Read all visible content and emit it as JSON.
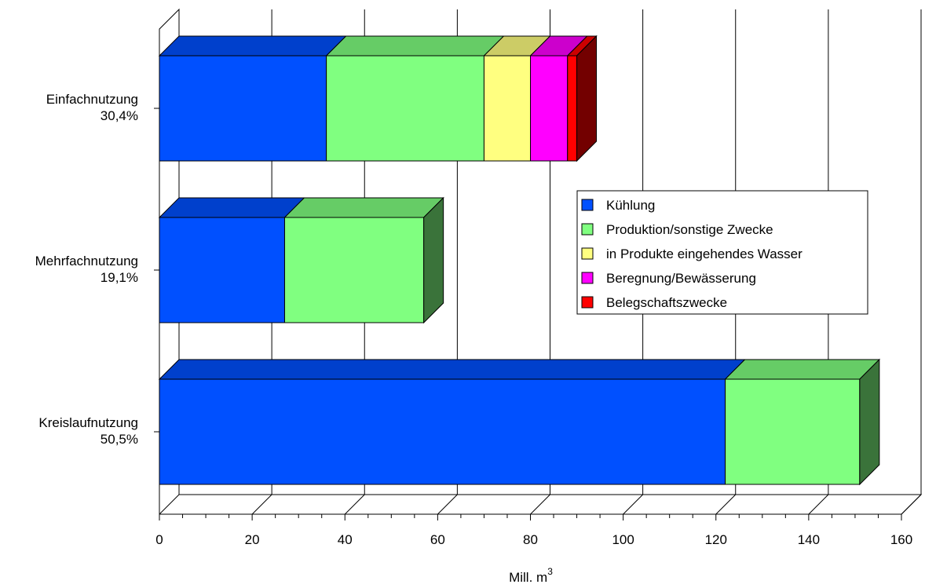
{
  "chart_data": {
    "type": "bar",
    "orientation": "horizontal",
    "stacked": true,
    "three_d": true,
    "categories": [
      {
        "name": "Einfachnutzung",
        "share": "30,4%"
      },
      {
        "name": "Mehrfachnutzung",
        "share": "19,1%"
      },
      {
        "name": "Kreislaufnutzung",
        "share": "50,5%"
      }
    ],
    "series": [
      {
        "name": "Kühlung",
        "color": "#0050ff",
        "values": [
          36,
          27,
          122
        ]
      },
      {
        "name": "Produktion/sonstige Zwecke",
        "color": "#80ff80",
        "values": [
          34,
          30,
          29
        ]
      },
      {
        "name": "in Produkte eingehendes Wasser",
        "color": "#ffff80",
        "values": [
          10,
          0,
          0
        ]
      },
      {
        "name": "Beregnung/Bewässerung",
        "color": "#ff00ff",
        "values": [
          8,
          0,
          0
        ]
      },
      {
        "name": "Belegschaftszwecke",
        "color": "#ff0000",
        "values": [
          2,
          0,
          0
        ]
      }
    ],
    "x_ticks": [
      0,
      20,
      40,
      60,
      80,
      100,
      120,
      140,
      160
    ],
    "xlim": [
      0,
      160
    ],
    "xlabel": "Mill. m",
    "xlabel_superscript": "3",
    "legend_position": "right",
    "grid": "vertical"
  }
}
